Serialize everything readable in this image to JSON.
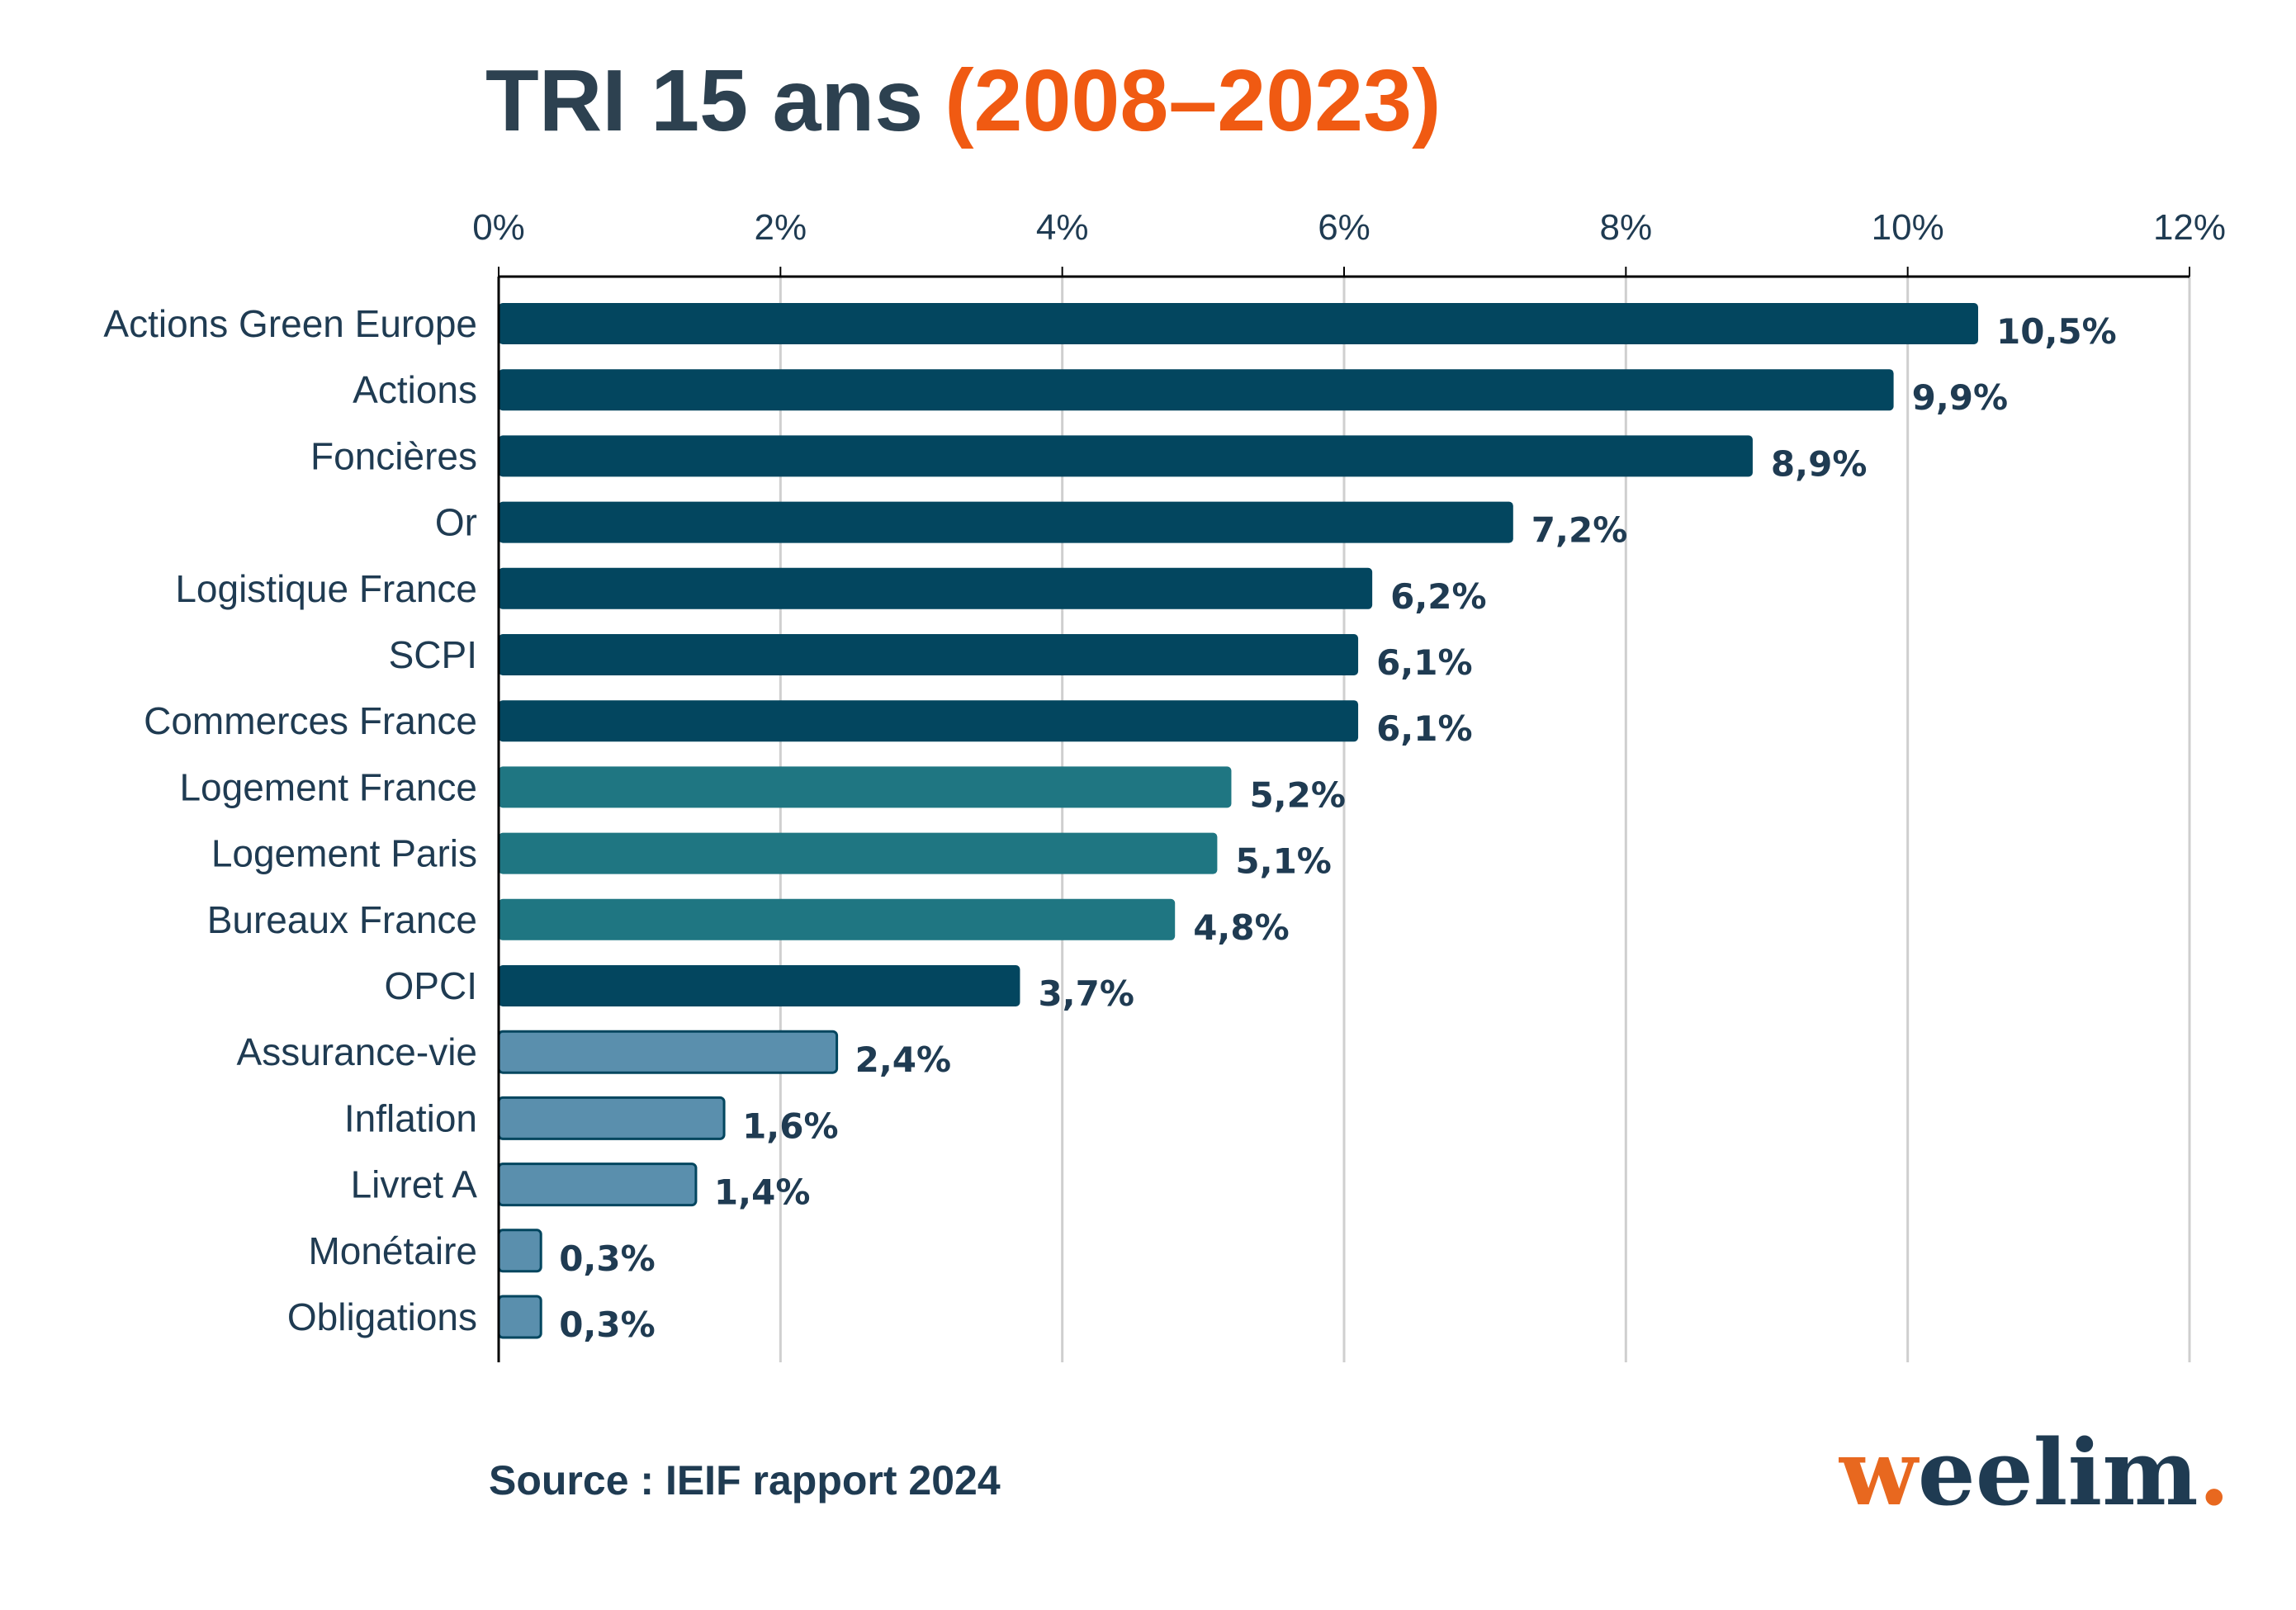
{
  "title": {
    "main": "TRI 15 ans",
    "highlight": "(2008–2023)",
    "main_color": "#2d4150",
    "highlight_color": "#f05a12"
  },
  "source": "Source : IEIF rapport 2024",
  "logo": {
    "text": "weelim",
    "dot": ".",
    "first_color": "#e8681f",
    "rest_color": "#1f3b52",
    "dot_color": "#e8681f"
  },
  "colors": {
    "dark": "#03465f",
    "teal": "#1f7682",
    "light": "#5a8fad",
    "gridline": "#cfcfcf",
    "axis": "#000000"
  },
  "chart_data": {
    "type": "bar",
    "orientation": "horizontal",
    "xlim": [
      0,
      12
    ],
    "xticks": [
      0,
      2,
      4,
      6,
      8,
      10,
      12
    ],
    "xtick_labels": [
      "0%",
      "2%",
      "4%",
      "6%",
      "8%",
      "10%",
      "12%"
    ],
    "grid": true,
    "categories": [
      "Actions Green Europe",
      "Actions",
      "Foncières",
      "Or",
      "Logistique France",
      "SCPI",
      "Commerces France",
      "Logement France",
      "Logement Paris",
      "Bureaux France",
      "OPCI",
      "Assurance-vie",
      "Inflation",
      "Livret A",
      "Monétaire",
      "Obligations"
    ],
    "values": [
      10.5,
      9.9,
      8.9,
      7.2,
      6.2,
      6.1,
      6.1,
      5.2,
      5.1,
      4.8,
      3.7,
      2.4,
      1.6,
      1.4,
      0.3,
      0.3
    ],
    "value_labels": [
      "10,5%",
      "9,9%",
      "8,9%",
      "7,2%",
      "6,2%",
      "6,1%",
      "6,1%",
      "5,2%",
      "5,1%",
      "4,8%",
      "3,7%",
      "2,4%",
      "1,6%",
      "1,4%",
      "0,3%",
      "0,3%"
    ],
    "bar_colors": [
      "dark",
      "dark",
      "dark",
      "dark",
      "dark",
      "dark",
      "dark",
      "teal",
      "teal",
      "teal",
      "dark",
      "light",
      "light",
      "light",
      "light",
      "light"
    ]
  }
}
